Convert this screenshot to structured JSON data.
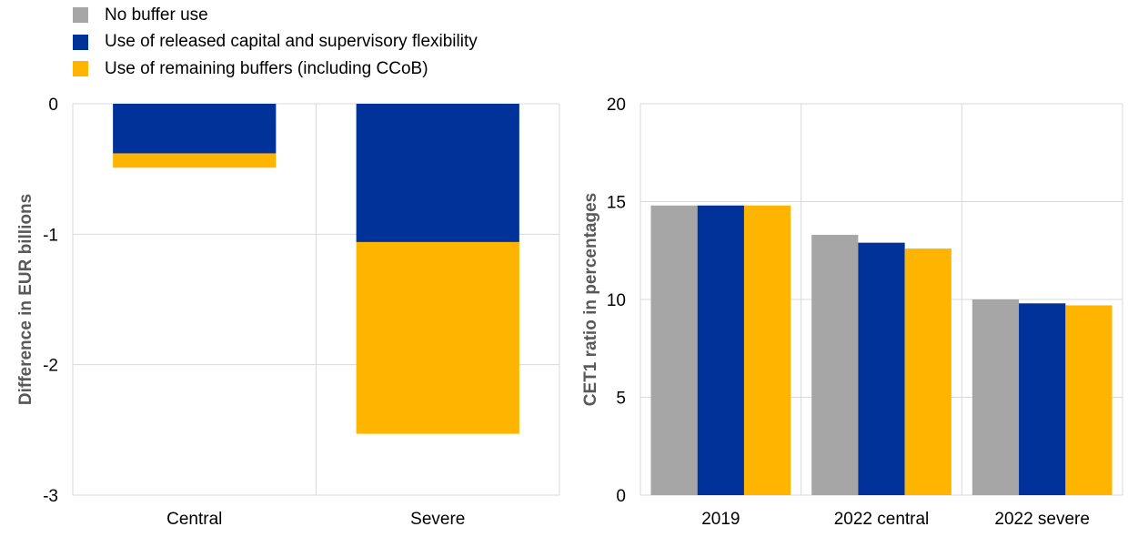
{
  "colors": {
    "no_buffer": "#a6a6a6",
    "released_capital": "#003299",
    "remaining_buffers": "#ffb400",
    "gridline": "#d9d9d9",
    "axis_label": "#595959"
  },
  "legend": [
    {
      "label": "No buffer use",
      "color": "#a6a6a6"
    },
    {
      "label": "Use of released capital and supervisory flexibility",
      "color": "#003299"
    },
    {
      "label": "Use of remaining buffers (including CCoB)",
      "color": "#ffb400"
    }
  ],
  "chart_data": [
    {
      "type": "bar",
      "stacked": true,
      "ylabel": "Difference in EUR billions",
      "ylim": [
        -3,
        0
      ],
      "yticks": [
        0,
        -1,
        -2,
        -3
      ],
      "categories": [
        "Central",
        "Severe"
      ],
      "series": [
        {
          "name": "Use of released capital and supervisory flexibility",
          "color": "#003299",
          "values": [
            -0.38,
            -1.06
          ]
        },
        {
          "name": "Use of remaining buffers (including CCoB)",
          "color": "#ffb400",
          "values": [
            -0.11,
            -1.47
          ]
        }
      ],
      "grid": true
    },
    {
      "type": "bar",
      "stacked": false,
      "ylabel": "CET1 ratio in percentages",
      "ylim": [
        0,
        20
      ],
      "yticks": [
        0,
        5,
        10,
        15,
        20
      ],
      "categories": [
        "2019",
        "2022 central",
        "2022 severe"
      ],
      "series": [
        {
          "name": "No buffer use",
          "color": "#a6a6a6",
          "values": [
            14.8,
            13.3,
            10.0
          ]
        },
        {
          "name": "Use of released capital and supervisory flexibility",
          "color": "#003299",
          "values": [
            14.8,
            12.9,
            9.8
          ]
        },
        {
          "name": "Use of remaining buffers (including CCoB)",
          "color": "#ffb400",
          "values": [
            14.8,
            12.6,
            9.7
          ]
        }
      ],
      "grid": true
    }
  ]
}
